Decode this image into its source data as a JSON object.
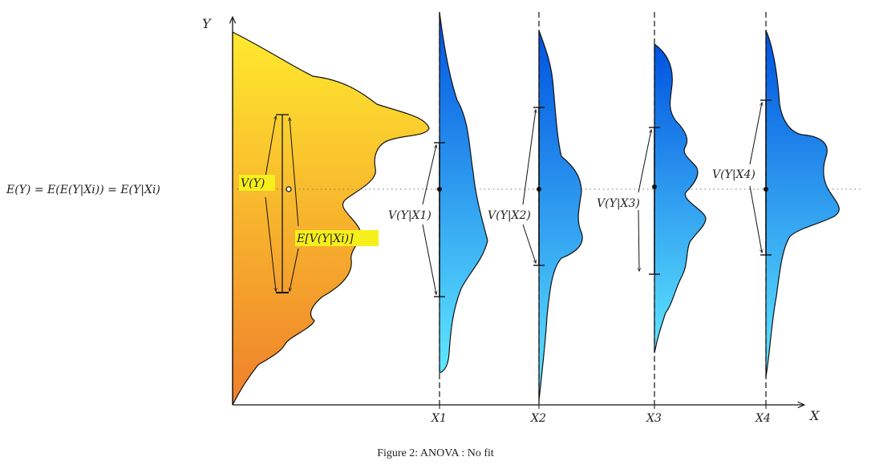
{
  "axes": {
    "y_label": "Y",
    "x_label": "X"
  },
  "marginal": {
    "mean_label": "E(Y) = E(E(Y|Xi)) = E(Y|Xi)",
    "variance_label": "V(Y)",
    "expected_variance_label": "E[V(Y|Xi)]",
    "gradient": {
      "top": "#ffe92e",
      "bottom": "#ef7f2c"
    },
    "highlight": "#f6ef1c"
  },
  "groups": [
    {
      "x_label": "X1",
      "var_label": "V(Y|X1)"
    },
    {
      "x_label": "X2",
      "var_label": "V(Y|X2)"
    },
    {
      "x_label": "X3",
      "var_label": "V(Y|X3)"
    },
    {
      "x_label": "X4",
      "var_label": "V(Y|X4)"
    }
  ],
  "group_gradient": {
    "top": "#0052e0",
    "bottom": "#5fe8ff"
  },
  "caption": "Figure 2: ANOVA : No fit"
}
